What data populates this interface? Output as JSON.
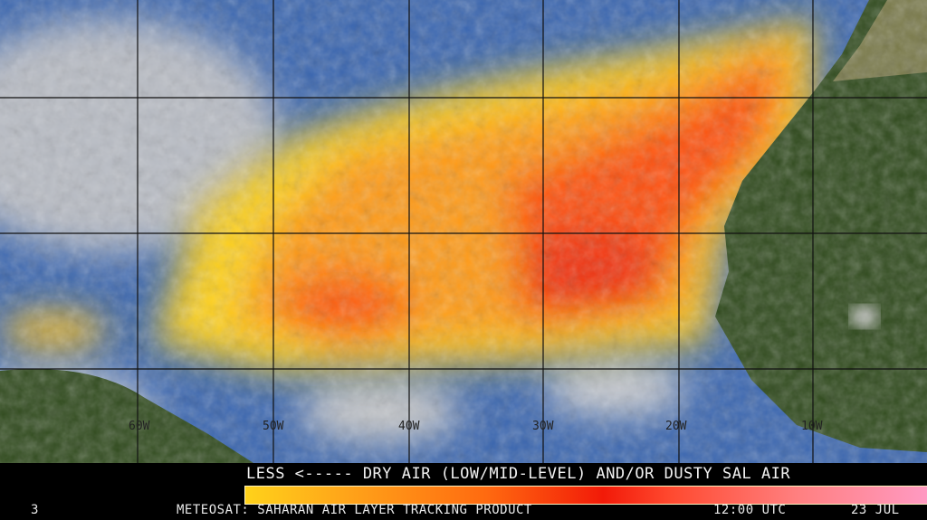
{
  "map": {
    "longitude_labels": [
      "60W",
      "50W",
      "40W",
      "30W",
      "20W",
      "10W"
    ],
    "colors": {
      "ocean": "#3a66b0",
      "cloud": "#d8d8d8",
      "land": "#2f4a1c",
      "dust_low": "#ffd21a",
      "dust_mid": "#ff7a10",
      "dust_high": "#f21a08"
    }
  },
  "legend": {
    "title": "LESS <----- DRY AIR (LOW/MID-LEVEL) AND/OR DUSTY SAL AIR",
    "frame_number": "3",
    "product": "METEOSAT: SAHARAN AIR LAYER TRACKING PRODUCT",
    "time": "12:00 UTC",
    "date": "23 JUL"
  }
}
